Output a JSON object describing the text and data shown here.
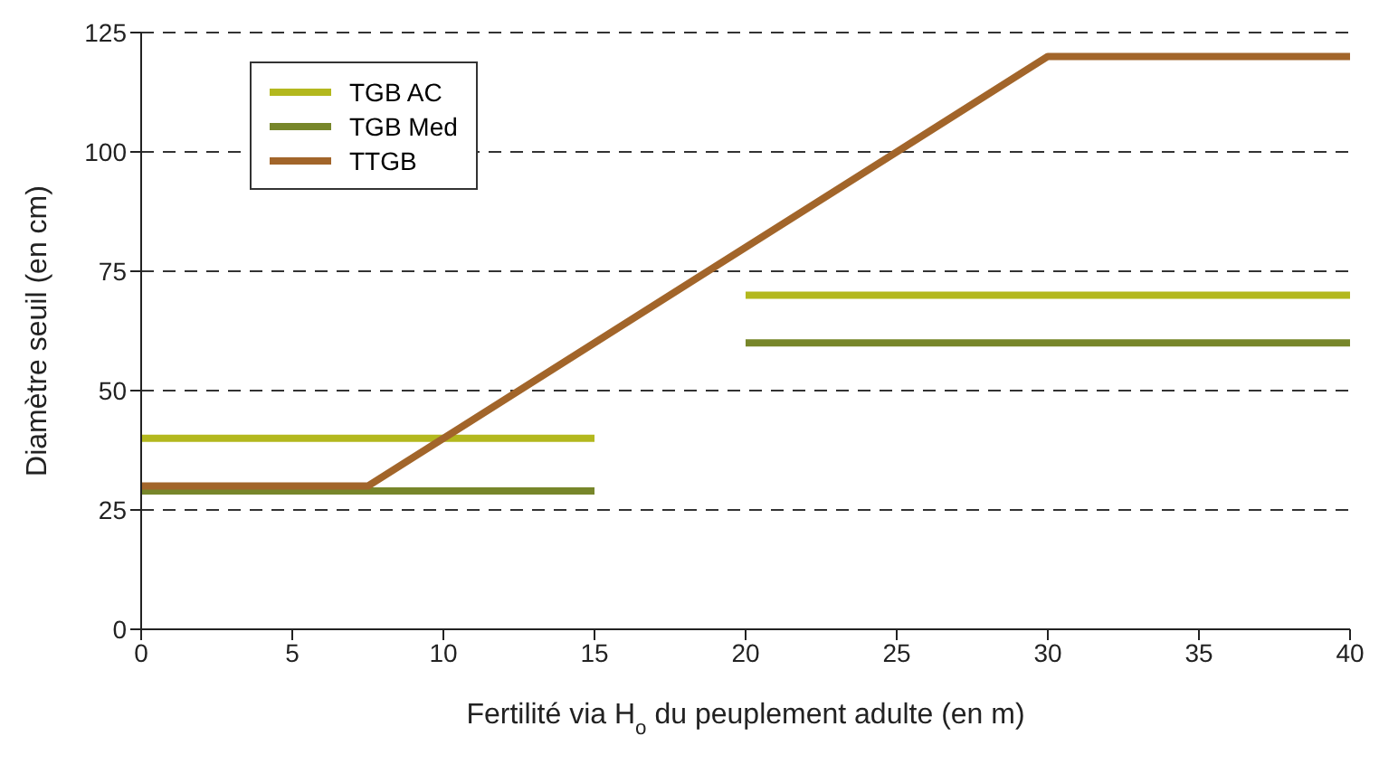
{
  "chart_data": {
    "type": "line",
    "xlabel": "Fertilité via H$_{o}$ du peuplement adulte (en m)",
    "ylabel": "Diamètre seuil (en cm)",
    "xlim": [
      0,
      40
    ],
    "xticks": [
      0,
      5,
      10,
      15,
      20,
      25,
      30,
      35,
      40
    ],
    "ylim": [
      0,
      125
    ],
    "yticks": [
      0,
      25,
      50,
      75,
      100,
      125
    ],
    "grid": "y",
    "legend": "top left",
    "marker": "none",
    "line_style": "solid",
    "series": [
      {
        "name": "TGB AC",
        "color": "#b3b81e",
        "x": [
          0,
          15,
          17.5,
          20,
          40
        ],
        "values": [
          40,
          40,
          null,
          70,
          70
        ]
      },
      {
        "name": "TGB Med",
        "color": "#77862a",
        "x": [
          0,
          15,
          17.5,
          20,
          40
        ],
        "values": [
          29,
          29,
          null,
          60,
          60
        ]
      },
      {
        "name": "TTGB",
        "color": "#a2652a",
        "x": [
          0,
          7.5,
          30,
          40
        ],
        "values": [
          30,
          30,
          120,
          120
        ]
      }
    ]
  }
}
